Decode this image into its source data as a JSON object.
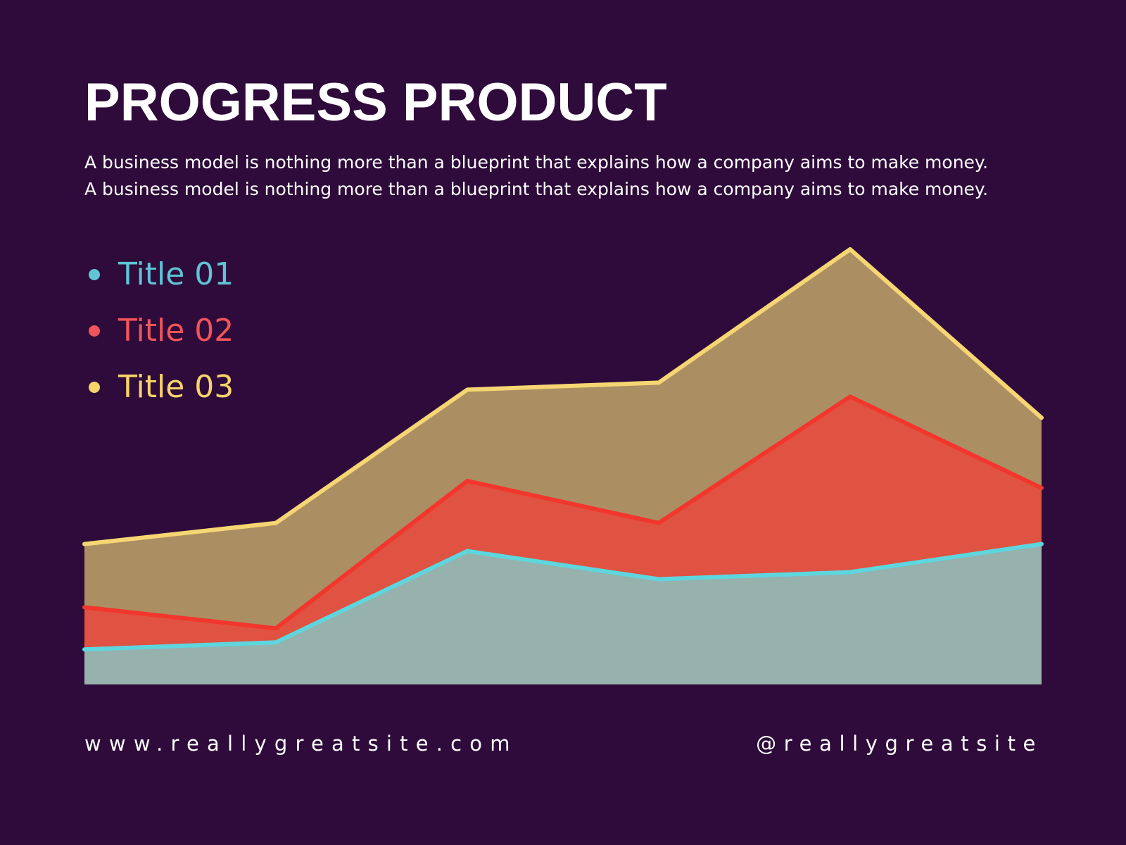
{
  "header": {
    "title": "PROGRESS PRODUCT",
    "subtitle_line1": "A business model is nothing more than a blueprint that explains how a company aims to make money.",
    "subtitle_line2": "A business model is nothing more than a blueprint that explains how a company aims to make money."
  },
  "legend": [
    {
      "label": "Title 01",
      "color": "#5fc4d4"
    },
    {
      "label": "Title 02",
      "color": "#f0555a"
    },
    {
      "label": "Title 03",
      "color": "#f5d56a"
    }
  ],
  "chart_data": {
    "type": "area",
    "x": [
      1,
      2,
      3,
      4,
      5,
      6
    ],
    "ylim": [
      0,
      62
    ],
    "grid": false,
    "legend_position": "top-left",
    "series": [
      {
        "name": "Title 01",
        "values": [
          5,
          6,
          19,
          15,
          16,
          20
        ],
        "line_color": "#5ed6de",
        "fill_color": "#97b1ad"
      },
      {
        "name": "Title 02",
        "values": [
          11,
          8,
          29,
          23,
          41,
          28
        ],
        "line_color": "#f2362d",
        "fill_color": "#e05241"
      },
      {
        "name": "Title 03",
        "values": [
          20,
          23,
          42,
          43,
          62,
          38
        ],
        "line_color": "#f6d673",
        "fill_color": "#ab8f63"
      }
    ]
  },
  "footer": {
    "website": "www.reallygreatsite.com",
    "handle": "@reallygreatsite"
  }
}
